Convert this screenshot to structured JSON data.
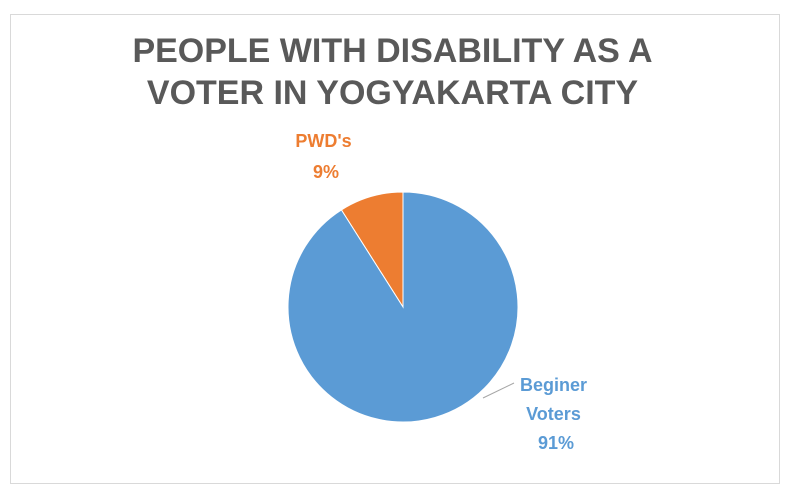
{
  "chart_data": {
    "type": "pie",
    "title_lines": [
      "PEOPLE WITH DISABILITY AS A",
      "VOTER IN YOGYAKARTA CITY"
    ],
    "categories": [
      "Beginer Voters",
      "PWD's"
    ],
    "values": [
      91,
      9
    ],
    "value_labels": [
      "91%",
      "9%"
    ],
    "label_lines": [
      [
        "Beginer",
        "Voters"
      ],
      [
        "PWD's"
      ]
    ],
    "colors": [
      "#5b9bd5",
      "#ed7d31"
    ],
    "legend": false
  }
}
